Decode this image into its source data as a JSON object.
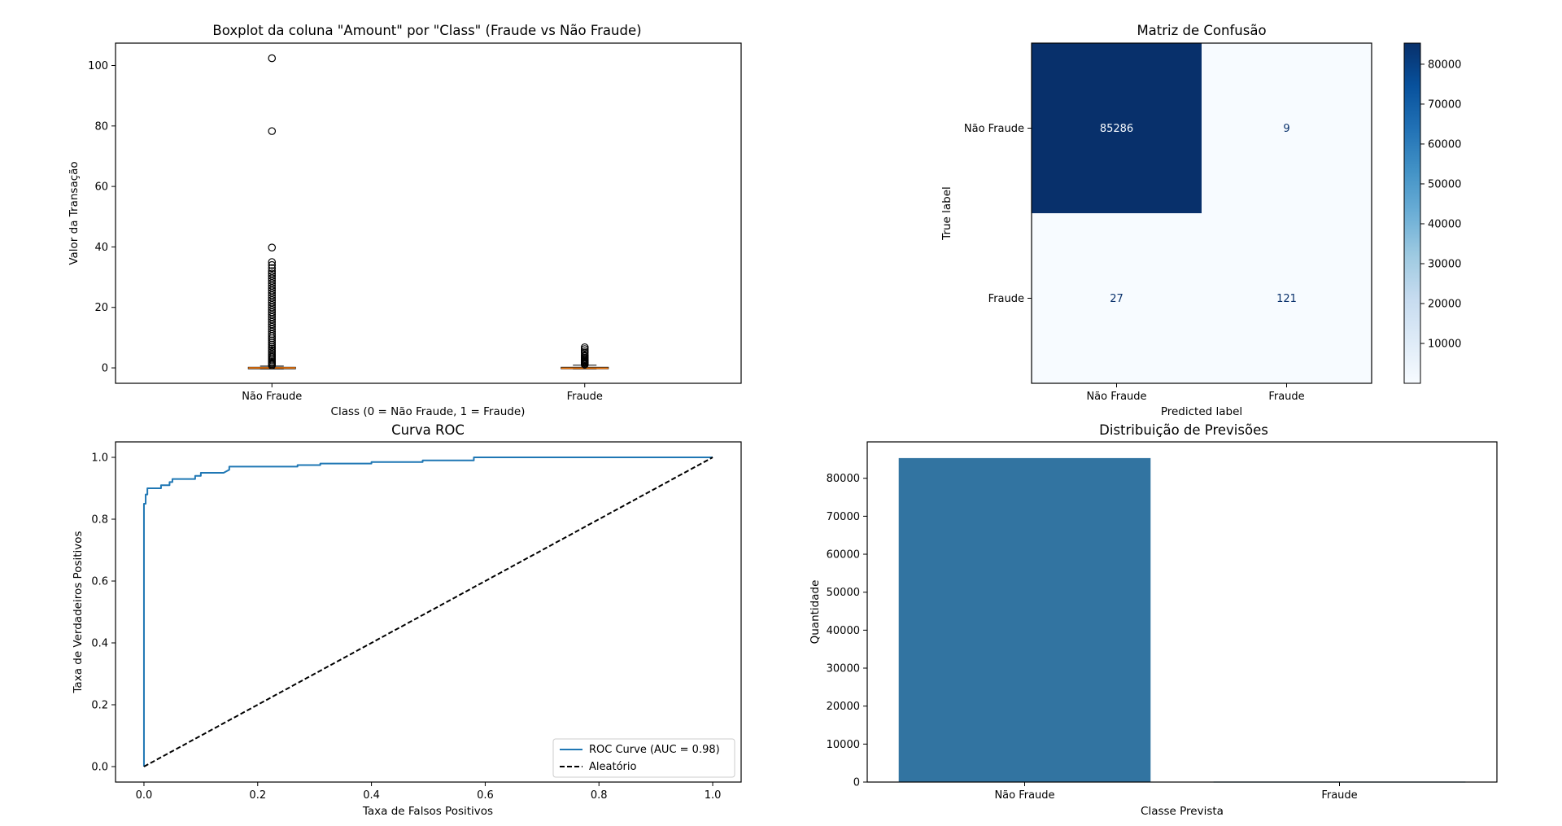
{
  "chart_data": [
    {
      "type": "box",
      "title": "Boxplot da coluna \"Amount\" por \"Class\" (Fraude vs Não Fraude)",
      "xlabel": "Class (0 = Não Fraude, 1 = Fraude)",
      "ylabel": "Valor da Transação",
      "categories": [
        "Não Fraude",
        "Fraude"
      ],
      "ylim": [
        -5.1,
        107.4
      ],
      "yticks": [
        0,
        20,
        40,
        60,
        80,
        100
      ],
      "boxes": [
        {
          "name": "Não Fraude",
          "q1": -0.3,
          "median": 0.0,
          "q3": 0.2,
          "whisker_low": -0.35,
          "whisker_high": 0.6,
          "outliers": [
            0.8,
            1.2,
            1.6,
            2.0,
            2.5,
            3.0,
            3.5,
            4.0,
            4.6,
            5.2,
            5.8,
            6.4,
            7.0,
            7.7,
            8.4,
            9.1,
            9.8,
            10.5,
            11.2,
            12.0,
            12.8,
            13.6,
            14.4,
            15.2,
            16.0,
            16.8,
            17.6,
            18.4,
            19.2,
            20.0,
            20.8,
            21.6,
            22.4,
            23.2,
            24.0,
            24.8,
            25.6,
            26.4,
            27.2,
            28.0,
            28.8,
            29.6,
            30.4,
            31.2,
            32.0,
            33.0,
            34.0,
            35.0,
            39.8,
            78.3,
            102.4
          ]
        },
        {
          "name": "Fraude",
          "q1": -0.3,
          "median": -0.1,
          "q3": 0.2,
          "whisker_low": -0.35,
          "whisker_high": 0.9,
          "outliers": [
            1.1,
            1.4,
            1.7,
            2.0,
            2.3,
            2.6,
            2.9,
            3.3,
            3.8,
            4.3,
            5.0,
            5.5,
            6.2,
            6.8
          ]
        }
      ]
    },
    {
      "type": "heatmap",
      "title": "Matriz de Confusão",
      "xlabel": "Predicted label",
      "ylabel": "True label",
      "x_labels": [
        "Não Fraude",
        "Fraude"
      ],
      "y_labels": [
        "Não Fraude",
        "Fraude"
      ],
      "values": [
        [
          85286,
          9
        ],
        [
          27,
          121
        ]
      ],
      "colormap": "Blues",
      "colorbar_ticks": [
        10000,
        20000,
        30000,
        40000,
        50000,
        60000,
        70000,
        80000
      ],
      "colorbar_range": [
        9,
        85286
      ]
    },
    {
      "type": "line",
      "title": "Curva ROC",
      "xlabel": "Taxa de Falsos Positivos",
      "ylabel": "Taxa de Verdadeiros Positivos",
      "xlim": [
        -0.05,
        1.05
      ],
      "ylim": [
        -0.05,
        1.05
      ],
      "xticks": [
        0.0,
        0.2,
        0.4,
        0.6,
        0.8,
        1.0
      ],
      "yticks": [
        0.0,
        0.2,
        0.4,
        0.6,
        0.8,
        1.0
      ],
      "legend_position": "lower-right",
      "series": [
        {
          "name": "ROC Curve (AUC = 0.98)",
          "color": "#1f77b4",
          "style": "solid",
          "x": [
            0.0,
            0.0,
            0.003,
            0.003,
            0.006,
            0.006,
            0.01,
            0.01,
            0.03,
            0.03,
            0.045,
            0.045,
            0.05,
            0.05,
            0.09,
            0.09,
            0.1,
            0.1,
            0.14,
            0.15,
            0.15,
            0.27,
            0.27,
            0.31,
            0.31,
            0.4,
            0.4,
            0.49,
            0.49,
            0.58,
            0.58,
            1.0
          ],
          "y": [
            0.0,
            0.85,
            0.85,
            0.88,
            0.88,
            0.9,
            0.9,
            0.9,
            0.9,
            0.91,
            0.91,
            0.92,
            0.92,
            0.93,
            0.93,
            0.94,
            0.94,
            0.95,
            0.95,
            0.96,
            0.97,
            0.97,
            0.975,
            0.975,
            0.98,
            0.98,
            0.985,
            0.985,
            0.99,
            0.99,
            1.0,
            1.0
          ]
        },
        {
          "name": "Aleatório",
          "color": "#000000",
          "style": "dashed",
          "x": [
            0.0,
            1.0
          ],
          "y": [
            0.0,
            1.0
          ]
        }
      ]
    },
    {
      "type": "bar",
      "title": "Distribuição de Previsões",
      "xlabel": "Classe Prevista",
      "ylabel": "Quantidade",
      "categories": [
        "Não Fraude",
        "Fraude"
      ],
      "values": [
        85313,
        130
      ],
      "ylim": [
        0,
        89580
      ],
      "yticks": [
        0,
        10000,
        20000,
        30000,
        40000,
        50000,
        60000,
        70000,
        80000
      ],
      "color": "#3274a1"
    }
  ]
}
